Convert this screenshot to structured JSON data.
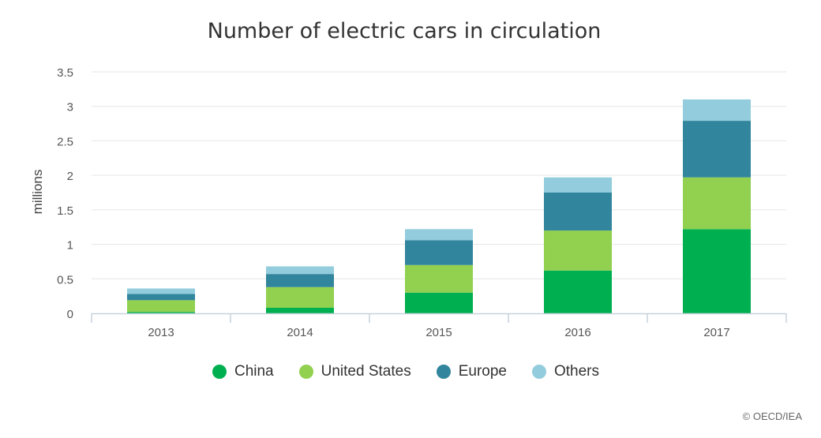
{
  "chart_data": {
    "type": "bar",
    "stacked": true,
    "title": "Number of electric cars in circulation",
    "xlabel": "",
    "ylabel": "millions",
    "categories": [
      "2013",
      "2014",
      "2015",
      "2016",
      "2017"
    ],
    "ylim": [
      0,
      3.5
    ],
    "yticks": [
      "0",
      "0.5",
      "1",
      "1.5",
      "2",
      "2.5",
      "3",
      "3.5"
    ],
    "grid": true,
    "legend_position": "bottom",
    "series": [
      {
        "name": "China",
        "color": "#00b050",
        "values": [
          0.02,
          0.08,
          0.3,
          0.62,
          1.22
        ]
      },
      {
        "name": "United States",
        "color": "#92d050",
        "values": [
          0.17,
          0.3,
          0.4,
          0.58,
          0.75
        ]
      },
      {
        "name": "Europe",
        "color": "#31859c",
        "values": [
          0.09,
          0.19,
          0.36,
          0.55,
          0.82
        ]
      },
      {
        "name": "Others",
        "color": "#93cddd",
        "values": [
          0.08,
          0.11,
          0.16,
          0.22,
          0.31
        ]
      }
    ]
  },
  "credits": "© OECD/IEA"
}
